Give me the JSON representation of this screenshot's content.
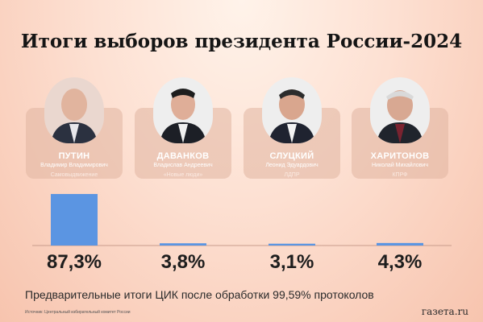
{
  "title": "Итоги выборов президента России-2024",
  "note": "Предварительные итоги ЦИК после обработки 99,59% протоколов",
  "source": "Источник: Центральный избирательный комитет России",
  "brand": "газета.ru",
  "colors": {
    "bar": "#5b95e2",
    "axis": "#c99c8c",
    "card": "#e0b4a0"
  },
  "candidates": [
    {
      "surname": "ПУТИН",
      "name": "Владимир Владимирович",
      "party": "Самовыдвижение",
      "percent": "87,3%"
    },
    {
      "surname": "ДАВАНКОВ",
      "name": "Владислав Андреевич",
      "party": "«Новые люди»",
      "percent": "3,8%"
    },
    {
      "surname": "СЛУЦКИЙ",
      "name": "Леонид Эдуардович",
      "party": "ЛДПР",
      "percent": "3,1%"
    },
    {
      "surname": "ХАРИТОНОВ",
      "name": "Николай Михайлович",
      "party": "КПРФ",
      "percent": "4,3%"
    }
  ],
  "chart_data": {
    "type": "bar",
    "title": "Итоги выборов президента России-2024",
    "categories": [
      "ПУТИН",
      "ДАВАНКОВ",
      "СЛУЦКИЙ",
      "ХАРИТОНОВ"
    ],
    "values": [
      87.3,
      3.8,
      3.1,
      4.3
    ],
    "data_labels": [
      "87,3%",
      "3,8%",
      "3,1%",
      "4,3%"
    ],
    "xlabel": "",
    "ylabel": "",
    "ylim": [
      0,
      90
    ],
    "grid": false,
    "legend": "none"
  }
}
